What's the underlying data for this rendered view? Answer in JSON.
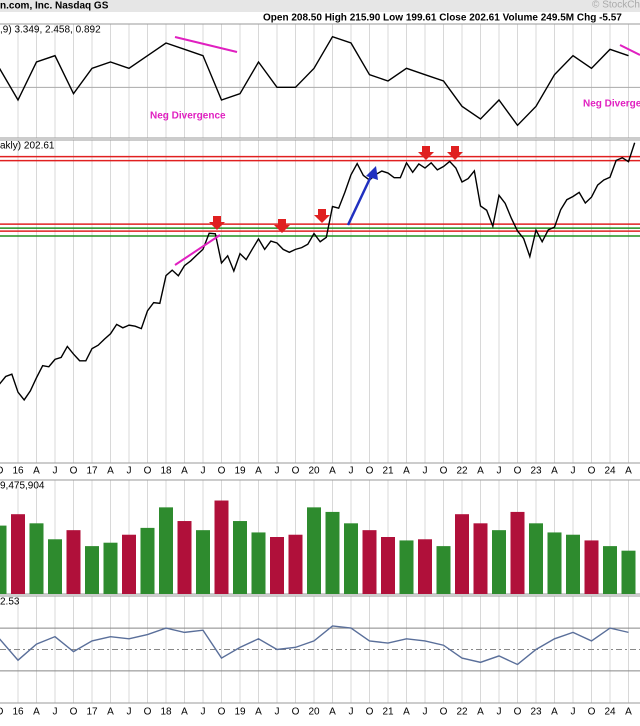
{
  "header": {
    "title": "n.com, Inc. Nasdaq GS",
    "quote": "Open 208.50  High 215.90  Low 199.61  Close 202.61  Volume 249.5M  Chg -5.57",
    "source": "© StockCh"
  },
  "chart_data": [
    {
      "type": "line",
      "label": ",9) 3.349, 2.458, 0.892",
      "annotations": [
        "Neg Divergence",
        "Neg Divergence"
      ],
      "color": "#000000",
      "ylim": [
        -8,
        10
      ],
      "values": [
        3,
        -2,
        4,
        5,
        -1,
        3,
        4,
        3,
        5,
        7,
        6,
        5,
        -2,
        -1,
        4,
        0,
        0,
        3,
        8,
        7,
        2,
        1,
        3,
        2,
        1,
        -3,
        -5,
        -2,
        -6,
        -3,
        2,
        5,
        3,
        6,
        5
      ]
    },
    {
      "type": "line",
      "label": "akly) 202.61",
      "log": true,
      "ylim": [
        17,
        207
      ],
      "color": "#000000",
      "categories": [
        "O",
        "16",
        "A",
        "J",
        "O",
        "17",
        "A",
        "J",
        "O",
        "18",
        "A",
        "J",
        "O",
        "19",
        "A",
        "J",
        "O",
        "20",
        "A",
        "J",
        "O",
        "21",
        "A",
        "J",
        "O",
        "22",
        "A",
        "J",
        "O",
        "23",
        "A",
        "J",
        "O",
        "24",
        "A"
      ],
      "hlines": [
        {
          "value": 182,
          "color": "#e02020"
        },
        {
          "value": 176.4,
          "color": "#e02020"
        },
        {
          "value": 108,
          "color": "#e02020"
        },
        {
          "value": 102.3,
          "color": "#e02020"
        },
        {
          "value": 104.7,
          "color": "#209020"
        },
        {
          "value": 98.5,
          "color": "#209020"
        }
      ],
      "x": [
        "2015-10",
        "2015-11",
        "2015-12",
        "2016-01",
        "2016-02",
        "2016-03",
        "2016-04",
        "2016-05",
        "2016-06",
        "2016-07",
        "2016-08",
        "2016-09",
        "2016-10",
        "2016-11",
        "2016-12",
        "2017-01",
        "2017-02",
        "2017-03",
        "2017-04",
        "2017-05",
        "2017-06",
        "2017-07",
        "2017-08",
        "2017-09",
        "2017-10",
        "2017-11",
        "2017-12",
        "2018-01",
        "2018-02",
        "2018-03",
        "2018-04",
        "2018-05",
        "2018-06",
        "2018-07",
        "2018-08",
        "2018-09",
        "2018-10",
        "2018-11",
        "2018-12",
        "2019-01",
        "2019-02",
        "2019-03",
        "2019-04",
        "2019-05",
        "2019-06",
        "2019-07",
        "2019-08",
        "2019-09",
        "2019-10",
        "2019-11",
        "2019-12",
        "2020-01",
        "2020-02",
        "2020-03",
        "2020-04",
        "2020-05",
        "2020-06",
        "2020-07",
        "2020-08",
        "2020-09",
        "2020-10",
        "2020-11",
        "2020-12",
        "2021-01",
        "2021-02",
        "2021-03",
        "2021-04",
        "2021-05",
        "2021-06",
        "2021-07",
        "2021-08",
        "2021-09",
        "2021-10",
        "2021-11",
        "2021-12",
        "2022-01",
        "2022-02",
        "2022-03",
        "2022-04",
        "2022-05",
        "2022-06",
        "2022-07",
        "2022-08",
        "2022-09",
        "2022-10",
        "2022-11",
        "2022-12",
        "2023-01",
        "2023-02",
        "2023-03",
        "2023-04",
        "2023-05",
        "2023-06",
        "2023-07",
        "2023-08",
        "2023-09",
        "2023-10",
        "2023-11",
        "2023-12",
        "2024-01",
        "2024-02",
        "2024-03",
        "2024-04",
        "2024-05"
      ],
      "values": [
        31.3,
        33.2,
        33.8,
        29.4,
        27.7,
        29.7,
        32.9,
        36.1,
        35.8,
        37.9,
        38.5,
        41.9,
        39.5,
        37.5,
        37.5,
        41.2,
        42.3,
        44.3,
        46.2,
        49.7,
        48.4,
        49.4,
        49.0,
        48.1,
        55.2,
        58.8,
        58.5,
        72.5,
        75.6,
        72.4,
        78.3,
        81.2,
        85.0,
        88.9,
        100.6,
        100.2,
        79.9,
        84.5,
        75.1,
        85.9,
        82.0,
        89.0,
        96.3,
        88.8,
        94.7,
        93.3,
        88.8,
        86.8,
        88.8,
        90.0,
        92.4,
        100.4,
        94.2,
        97.5,
        123.7,
        122.1,
        138.0,
        158.2,
        172.5,
        157.4,
        151.8,
        158.4,
        162.8,
        160.3,
        154.6,
        154.7,
        173.4,
        161.2,
        172.0,
        166.6,
        173.5,
        164.3,
        168.6,
        175.4,
        166.7,
        149.6,
        153.6,
        163.0,
        124.3,
        120.2,
        106.2,
        134.9,
        126.8,
        113.0,
        102.4,
        96.5,
        84.0,
        103.1,
        94.2,
        103.3,
        105.5,
        120.6,
        130.4,
        133.7,
        138.0,
        127.1,
        133.1,
        146.1,
        151.9,
        155.2,
        176.8,
        180.4,
        175.0,
        202.61
      ]
    },
    {
      "type": "bar",
      "label": "9,475,904",
      "ylim": [
        0,
        1000
      ],
      "values": [
        600,
        700,
        620,
        480,
        560,
        420,
        450,
        520,
        580,
        760,
        640,
        560,
        820,
        640,
        540,
        500,
        520,
        760,
        720,
        620,
        560,
        500,
        470,
        480,
        420,
        700,
        620,
        560,
        720,
        620,
        540,
        520,
        470,
        420,
        380
      ],
      "colors": [
        "#2e8b2e",
        "#b0103a",
        "#2e8b2e",
        "#2e8b2e",
        "#b0103a",
        "#2e8b2e",
        "#2e8b2e",
        "#b0103a",
        "#2e8b2e",
        "#2e8b2e",
        "#b0103a",
        "#2e8b2e",
        "#b0103a",
        "#2e8b2e",
        "#2e8b2e",
        "#b0103a",
        "#b0103a",
        "#2e8b2e",
        "#2e8b2e",
        "#2e8b2e",
        "#b0103a",
        "#b0103a",
        "#2e8b2e",
        "#b0103a",
        "#2e8b2e",
        "#b0103a",
        "#b0103a",
        "#2e8b2e",
        "#b0103a",
        "#2e8b2e",
        "#2e8b2e",
        "#2e8b2e",
        "#b0103a",
        "#2e8b2e",
        "#2e8b2e"
      ]
    },
    {
      "type": "line",
      "label": "2.53",
      "ylim": [
        0,
        100
      ],
      "ref_lines": [
        30,
        50,
        70
      ],
      "color": "#5a6f9a",
      "values": [
        60,
        40,
        55,
        62,
        48,
        58,
        62,
        60,
        64,
        70,
        66,
        68,
        42,
        52,
        60,
        50,
        52,
        58,
        72,
        70,
        58,
        56,
        60,
        58,
        54,
        42,
        38,
        44,
        36,
        50,
        60,
        66,
        58,
        70,
        66
      ]
    }
  ]
}
